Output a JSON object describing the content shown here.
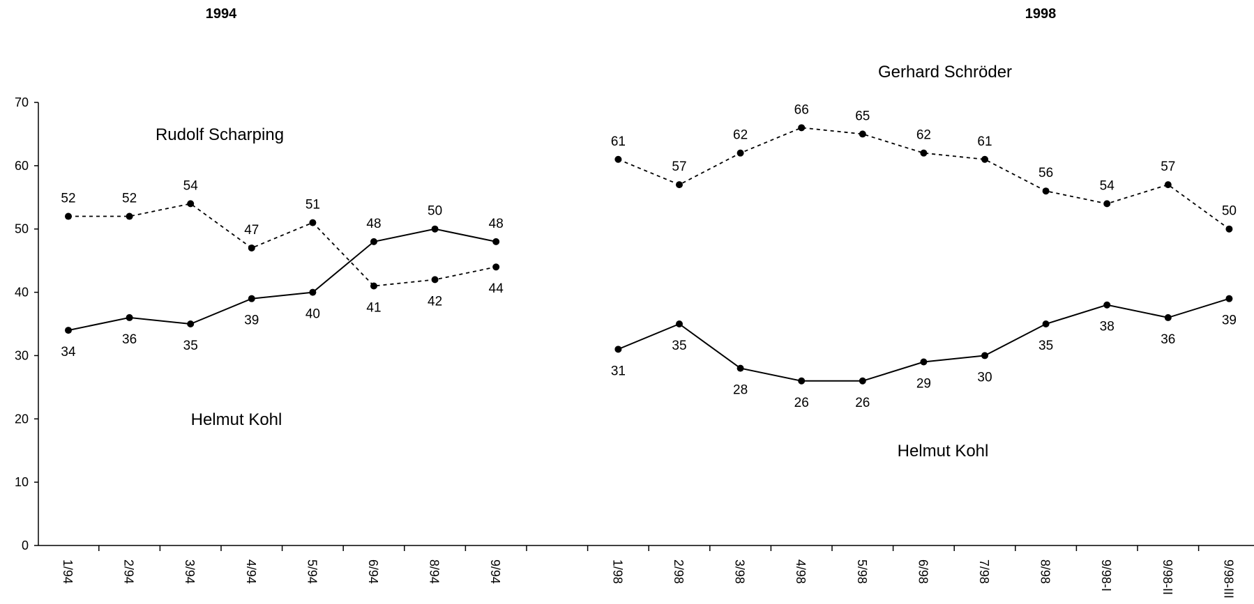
{
  "chart_data": {
    "type": "line",
    "yticks": [
      "0",
      "10",
      "20",
      "30",
      "40",
      "50",
      "60",
      "70"
    ],
    "ylim": [
      0,
      70
    ],
    "grid": false,
    "panels": [
      {
        "id": "1994",
        "title": "1994",
        "categories": [
          "1/94",
          "2/94",
          "3/94",
          "4/94",
          "5/94",
          "6/94",
          "8/94",
          "9/94"
        ],
        "series": [
          {
            "name": "Rudolf Scharping",
            "style": "dashed",
            "values": [
              52,
              52,
              54,
              47,
              51,
              41,
              42,
              44
            ],
            "labels": [
              "52",
              "52",
              "54",
              "47",
              "51",
              "41",
              "42",
              "44"
            ]
          },
          {
            "name": "Helmut Kohl",
            "style": "solid",
            "values": [
              34,
              36,
              35,
              39,
              40,
              48,
              50,
              48
            ],
            "labels": [
              "34",
              "36",
              "35",
              "39",
              "40",
              "48",
              "50",
              "48"
            ]
          }
        ]
      },
      {
        "id": "1998",
        "title": "1998",
        "categories": [
          "1/98",
          "2/98",
          "3/98",
          "4/98",
          "5/98",
          "6/98",
          "7/98",
          "8/98",
          "9/98-I",
          "9/98-II",
          "9/98-III"
        ],
        "series": [
          {
            "name": "Gerhard Schröder",
            "style": "dashed",
            "values": [
              61,
              57,
              62,
              66,
              65,
              62,
              61,
              56,
              54,
              57,
              50
            ],
            "labels": [
              "61",
              "57",
              "62",
              "66",
              "65",
              "62",
              "61",
              "56",
              "54",
              "57",
              "50"
            ]
          },
          {
            "name": "Helmut Kohl",
            "style": "solid",
            "values": [
              31,
              35,
              28,
              26,
              26,
              29,
              30,
              35,
              38,
              36,
              39
            ],
            "labels": [
              "31",
              "35",
              "28",
              "26",
              "26",
              "29",
              "30",
              "35",
              "38",
              "36",
              "39"
            ]
          }
        ]
      }
    ]
  }
}
